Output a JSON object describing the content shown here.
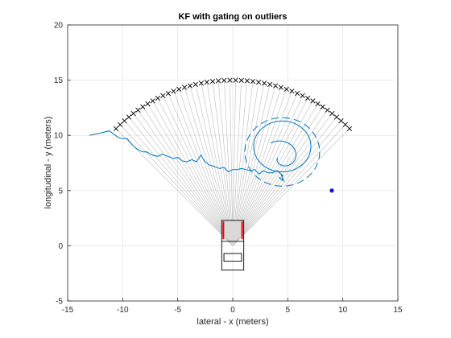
{
  "chart_data": {
    "type": "scatter",
    "title": "KF with gating on outliers",
    "xlabel": "lateral - x (meters)",
    "ylabel": "longitudinal - y (meters)",
    "xlim": [
      -15,
      15
    ],
    "ylim": [
      -5,
      20
    ],
    "xticks": [
      "-15",
      "-10",
      "-5",
      "0",
      "5",
      "10",
      "15"
    ],
    "yticks": [
      "-5",
      "0",
      "5",
      "10",
      "15",
      "20"
    ],
    "grid": true,
    "colors": {
      "track": "#0072BD",
      "beams": "#bdbdbd",
      "markers": "#000000",
      "outlier": "#0000CC",
      "vehicle_front": "#ff0000",
      "vehicle": "#000000",
      "grid": "#e6e6e6"
    },
    "sensor_origin": [
      0,
      0
    ],
    "sensor_range": 15,
    "sensor_fov_deg": [
      45,
      135
    ],
    "beam_count": 46,
    "track": {
      "x": [
        -13.0,
        -11.2,
        -10.8,
        -10.4,
        -10.0,
        -9.6,
        -9.0,
        -8.6,
        -8.2,
        -7.8,
        -7.3,
        -6.8,
        -6.4,
        -5.9,
        -5.4,
        -5.0,
        -4.6,
        -4.2,
        -3.7,
        -3.3,
        -2.9,
        -2.5,
        -2.1,
        -1.7,
        -1.2,
        -0.8,
        -0.4,
        0.0,
        0.4,
        0.8,
        1.2,
        1.6,
        2.0,
        2.4,
        2.8,
        3.2,
        3.6,
        4.0,
        4.4,
        4.6
      ],
      "y": [
        10.0,
        10.4,
        10.1,
        9.8,
        9.7,
        9.7,
        9.0,
        8.7,
        8.5,
        8.5,
        8.2,
        8.1,
        8.3,
        8.1,
        7.9,
        8.0,
        7.7,
        7.6,
        7.8,
        7.6,
        8.2,
        7.6,
        7.3,
        7.2,
        7.0,
        7.1,
        6.7,
        6.9,
        6.9,
        7.0,
        6.9,
        6.8,
        6.9,
        6.5,
        6.8,
        6.6,
        6.6,
        6.8,
        6.5,
        6.3
      ]
    },
    "outlier": [
      9.0,
      5.0
    ],
    "covariance_inner": {
      "center": [
        4.5,
        9.0
      ],
      "rx": 2.6,
      "ry": 2.3
    },
    "covariance_outer": {
      "center": [
        4.5,
        8.5
      ],
      "rx": 3.4,
      "ry": 3.1
    },
    "vehicle": {
      "x": [
        -1.0,
        1.0
      ],
      "y": [
        -2.2,
        2.3
      ]
    }
  }
}
